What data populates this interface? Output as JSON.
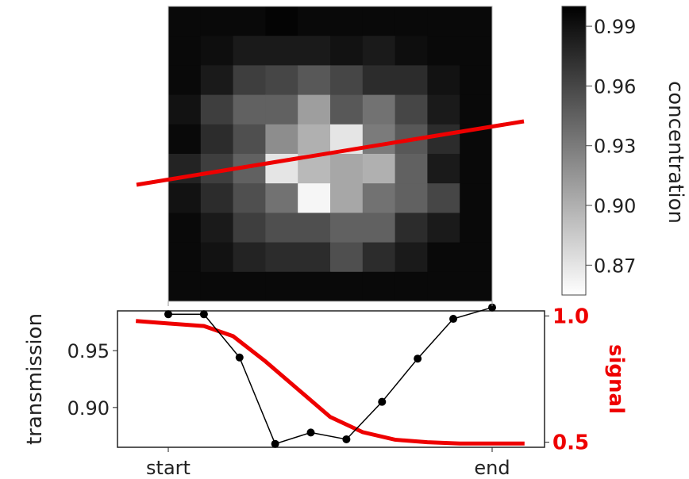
{
  "chart_data": [
    {
      "type": "heatmap",
      "colorbar": {
        "label": "concentration",
        "ticks": [
          "0.99",
          "0.96",
          "0.93",
          "0.90",
          "0.87"
        ],
        "tick_values": [
          0.99,
          0.96,
          0.93,
          0.9,
          0.87
        ],
        "range": [
          0.855,
          1.0
        ],
        "colormap": "gray_r"
      },
      "cmin": 0.855,
      "cmax": 1.0,
      "grid": [
        [
          0.995,
          0.995,
          0.995,
          0.998,
          0.995,
          0.995,
          0.995,
          0.995,
          0.995,
          0.995
        ],
        [
          0.995,
          0.992,
          0.985,
          0.985,
          0.985,
          0.99,
          0.985,
          0.992,
          0.995,
          0.995
        ],
        [
          0.995,
          0.985,
          0.965,
          0.96,
          0.95,
          0.96,
          0.975,
          0.975,
          0.99,
          0.995
        ],
        [
          0.99,
          0.965,
          0.945,
          0.945,
          0.91,
          0.95,
          0.935,
          0.96,
          0.985,
          0.995
        ],
        [
          0.995,
          0.975,
          0.955,
          0.92,
          0.9,
          0.87,
          0.93,
          0.95,
          0.975,
          0.995
        ],
        [
          0.98,
          0.965,
          0.945,
          0.87,
          0.895,
          0.905,
          0.9,
          0.945,
          0.985,
          0.995
        ],
        [
          0.99,
          0.975,
          0.955,
          0.935,
          0.86,
          0.905,
          0.935,
          0.945,
          0.96,
          0.995
        ],
        [
          0.995,
          0.985,
          0.965,
          0.955,
          0.955,
          0.945,
          0.945,
          0.975,
          0.985,
          0.995
        ],
        [
          0.995,
          0.99,
          0.98,
          0.975,
          0.975,
          0.955,
          0.975,
          0.985,
          0.995,
          0.995
        ],
        [
          0.995,
          0.995,
          0.995,
          0.995,
          0.995,
          0.995,
          0.995,
          0.995,
          0.995,
          0.995
        ]
      ],
      "line_color": "#ee0000"
    },
    {
      "type": "line",
      "xlabel": "",
      "x_tick_labels": [
        "start",
        "end"
      ],
      "ylabel": "transmission",
      "ylabel_right": "signal",
      "y_ticks": [
        "0.95",
        "0.90"
      ],
      "y_tick_values": [
        0.95,
        0.9
      ],
      "ylim": [
        0.865,
        0.985
      ],
      "y2_ticks": [
        "1.0",
        "0.5"
      ],
      "y2_tick_values": [
        1.0,
        0.5
      ],
      "y2lim": [
        0.48,
        1.02
      ],
      "series": [
        {
          "axis": "left",
          "color": "#000000",
          "marker": "circle",
          "x": [
            0.0,
            0.11,
            0.22,
            0.33,
            0.44,
            0.55,
            0.66,
            0.77,
            0.88,
            1.0
          ],
          "y": [
            0.982,
            0.982,
            0.944,
            0.868,
            0.878,
            0.872,
            0.905,
            0.943,
            0.978,
            0.988
          ]
        },
        {
          "axis": "right",
          "color": "#ee0000",
          "marker": "none",
          "x": [
            -0.1,
            0.0,
            0.11,
            0.2,
            0.3,
            0.4,
            0.5,
            0.6,
            0.7,
            0.8,
            0.9,
            1.0,
            1.1
          ],
          "y": [
            0.98,
            0.97,
            0.96,
            0.92,
            0.82,
            0.71,
            0.6,
            0.54,
            0.51,
            0.5,
            0.495,
            0.495,
            0.495
          ]
        }
      ],
      "grid": false
    }
  ]
}
